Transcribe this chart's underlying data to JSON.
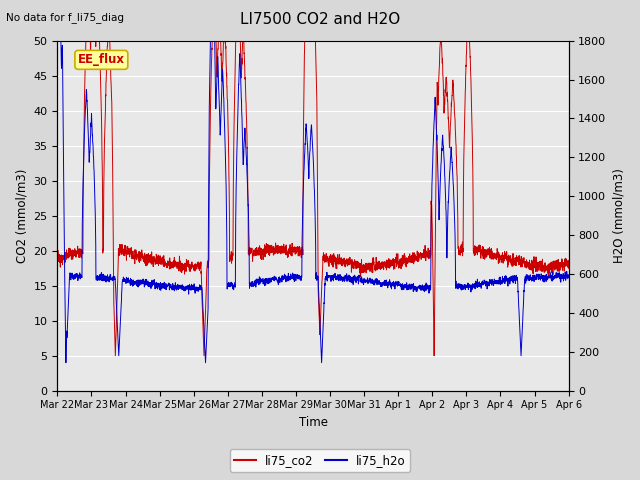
{
  "title": "LI7500 CO2 and H2O",
  "subtitle": "No data for f_li75_diag",
  "xlabel": "Time",
  "ylabel_left": "CO2 (mmol/m3)",
  "ylabel_right": "H2O (mmol/m3)",
  "ylim_left": [
    0,
    50
  ],
  "ylim_right": [
    0,
    1800
  ],
  "yticks_left": [
    0,
    5,
    10,
    15,
    20,
    25,
    30,
    35,
    40,
    45,
    50
  ],
  "yticks_right": [
    0,
    200,
    400,
    600,
    800,
    1000,
    1200,
    1400,
    1600,
    1800
  ],
  "legend_label1": "li75_co2",
  "legend_label2": "li75_h2o",
  "color_co2": "#cc0000",
  "color_h2o": "#0000cc",
  "bg_color": "#d8d8d8",
  "plot_bg_color": "#e8e8e8",
  "annotation_text": "EE_flux",
  "n_points": 3000,
  "seed": 42,
  "xtick_labels": [
    "Mar 22",
    "Mar 23",
    "Mar 24",
    "Mar 25",
    "Mar 26",
    "Mar 27",
    "Mar 28",
    "Mar 29",
    "Mar 30",
    "Mar 31",
    "Apr 1",
    "Apr 2",
    "Apr 3",
    "Apr 4",
    "Apr 5",
    "Apr 6"
  ]
}
